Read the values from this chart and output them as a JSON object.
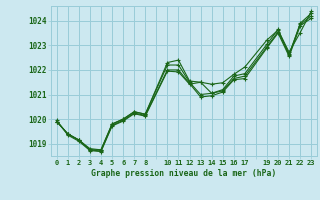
{
  "title": "Graphe pression niveau de la mer (hPa)",
  "bg_color": "#cce8f0",
  "grid_color": "#99ccd8",
  "line_color": "#1a6618",
  "text_color": "#1a6618",
  "xlim": [
    -0.5,
    23.5
  ],
  "ylim": [
    1018.5,
    1024.6
  ],
  "yticks": [
    1019,
    1020,
    1021,
    1022,
    1023,
    1024
  ],
  "xtick_positions": [
    0,
    1,
    2,
    3,
    4,
    5,
    6,
    7,
    8,
    10,
    11,
    12,
    13,
    14,
    15,
    16,
    17,
    19,
    20,
    21,
    22,
    23
  ],
  "xtick_labels": [
    "0",
    "1",
    "2",
    "3",
    "4",
    "5",
    "6",
    "7",
    "8",
    "10",
    "11",
    "12",
    "13",
    "14",
    "15",
    "16",
    "17",
    "19",
    "20",
    "21",
    "22",
    "23"
  ],
  "lines": [
    {
      "x": [
        0,
        1,
        2,
        3,
        4,
        5,
        6,
        7,
        8,
        10,
        11,
        12,
        13,
        14,
        15,
        16,
        17,
        19,
        20,
        21,
        22,
        23
      ],
      "y": [
        1019.9,
        1019.4,
        1019.15,
        1018.75,
        1018.75,
        1019.8,
        1020.0,
        1020.3,
        1020.2,
        1022.3,
        1022.4,
        1021.55,
        1021.5,
        1021.05,
        1021.2,
        1021.75,
        1021.85,
        1023.05,
        1023.65,
        1022.6,
        1023.9,
        1024.3
      ]
    },
    {
      "x": [
        0,
        1,
        2,
        3,
        4,
        5,
        6,
        7,
        8,
        10,
        11,
        12,
        13,
        14,
        15,
        16,
        17,
        19,
        20,
        21,
        22,
        23
      ],
      "y": [
        1019.9,
        1019.4,
        1019.15,
        1018.8,
        1018.75,
        1019.8,
        1020.0,
        1020.3,
        1020.2,
        1022.2,
        1022.2,
        1021.5,
        1021.0,
        1021.05,
        1021.15,
        1021.65,
        1021.75,
        1022.95,
        1023.55,
        1022.65,
        1023.85,
        1024.2
      ]
    },
    {
      "x": [
        0,
        1,
        2,
        3,
        4,
        5,
        6,
        7,
        8,
        10,
        11,
        12,
        13,
        14,
        15,
        16,
        17,
        19,
        20,
        21,
        22,
        23
      ],
      "y": [
        1019.9,
        1019.4,
        1019.15,
        1018.75,
        1018.7,
        1019.75,
        1019.95,
        1020.25,
        1020.15,
        1022.0,
        1022.0,
        1021.45,
        1020.9,
        1020.95,
        1021.1,
        1021.6,
        1021.65,
        1022.9,
        1023.5,
        1022.55,
        1023.8,
        1024.1
      ]
    },
    {
      "x": [
        0,
        1,
        2,
        3,
        4,
        5,
        6,
        7,
        8,
        10,
        11,
        12,
        13,
        14,
        15,
        16,
        17,
        19,
        20,
        21,
        22,
        23
      ],
      "y": [
        1019.95,
        1019.35,
        1019.1,
        1018.72,
        1018.68,
        1019.72,
        1019.92,
        1020.22,
        1020.12,
        1021.95,
        1021.92,
        1021.42,
        1021.5,
        1021.42,
        1021.48,
        1021.82,
        1022.12,
        1023.22,
        1023.62,
        1022.72,
        1023.52,
        1024.38
      ]
    }
  ]
}
